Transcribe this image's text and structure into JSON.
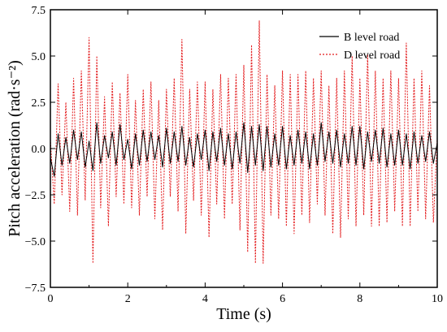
{
  "chart_data": {
    "type": "line",
    "title": "",
    "xlabel": "Time (s)",
    "ylabel": "Pitch acceleration (rad·s⁻²)",
    "xlim": [
      0,
      10
    ],
    "ylim": [
      -7.5,
      7.5
    ],
    "x_ticks": [
      0,
      2,
      4,
      6,
      8,
      10
    ],
    "x_tick_labels": [
      "0",
      "2",
      "4",
      "6",
      "8",
      "10"
    ],
    "y_ticks": [
      -7.5,
      -5.0,
      -2.5,
      0.0,
      2.5,
      5.0,
      7.5
    ],
    "y_tick_labels": [
      "−7.5",
      "−5.0",
      "−2.5",
      "0.0",
      "2.5",
      "5.0",
      "7.5"
    ],
    "grid": false,
    "legend_position": "top-right",
    "series": [
      {
        "name": "B level road",
        "color": "#000000",
        "style": "solid",
        "x": [
          0.0,
          0.1,
          0.2,
          0.3,
          0.4,
          0.5,
          0.6,
          0.7,
          0.8,
          0.9,
          1.0,
          1.1,
          1.2,
          1.3,
          1.4,
          1.5,
          1.6,
          1.7,
          1.8,
          1.9,
          2.0,
          2.1,
          2.2,
          2.3,
          2.4,
          2.5,
          2.6,
          2.7,
          2.8,
          2.9,
          3.0,
          3.1,
          3.2,
          3.3,
          3.4,
          3.5,
          3.6,
          3.7,
          3.8,
          3.9,
          4.0,
          4.1,
          4.2,
          4.3,
          4.4,
          4.5,
          4.6,
          4.7,
          4.8,
          4.9,
          5.0,
          5.1,
          5.2,
          5.3,
          5.4,
          5.5,
          5.6,
          5.7,
          5.8,
          5.9,
          6.0,
          6.1,
          6.2,
          6.3,
          6.4,
          6.5,
          6.6,
          6.7,
          6.8,
          6.9,
          7.0,
          7.1,
          7.2,
          7.3,
          7.4,
          7.5,
          7.6,
          7.7,
          7.8,
          7.9,
          8.0,
          8.1,
          8.2,
          8.3,
          8.4,
          8.5,
          8.6,
          8.7,
          8.8,
          8.9,
          9.0,
          9.1,
          9.2,
          9.3,
          9.4,
          9.5,
          9.6,
          9.7,
          9.8,
          9.9,
          10.0
        ],
        "values": [
          -0.5,
          -1.5,
          0.8,
          -0.9,
          0.6,
          -0.8,
          1.0,
          -0.6,
          0.9,
          -1.0,
          0.4,
          -1.2,
          1.4,
          -0.8,
          0.7,
          -0.5,
          0.9,
          -0.9,
          1.3,
          -0.6,
          0.5,
          -1.1,
          0.8,
          -0.9,
          1.0,
          -0.7,
          0.9,
          -0.6,
          0.7,
          -1.0,
          1.1,
          -0.8,
          0.9,
          -0.7,
          1.2,
          -0.9,
          0.6,
          -1.0,
          0.8,
          -0.6,
          1.0,
          -1.2,
          0.9,
          -0.7,
          1.1,
          -0.9,
          0.8,
          -1.1,
          0.9,
          -0.8,
          1.4,
          -1.3,
          1.2,
          -0.9,
          1.3,
          -1.2,
          1.2,
          -1.0,
          0.8,
          -0.9,
          1.2,
          -1.1,
          0.7,
          -0.9,
          1.0,
          -0.8,
          0.9,
          -1.1,
          0.8,
          -0.9,
          1.4,
          -0.7,
          0.9,
          -0.8,
          1.0,
          -1.0,
          0.8,
          -0.8,
          1.2,
          -0.9,
          1.2,
          -1.1,
          0.9,
          -0.7,
          1.0,
          -0.8,
          1.1,
          -1.0,
          0.8,
          -0.9,
          1.0,
          -0.9,
          0.8,
          -1.1,
          0.9,
          -0.8,
          0.7,
          -0.7,
          0.9,
          -0.8,
          0.3
        ]
      },
      {
        "name": "D level road",
        "color": "#e31a1c",
        "style": "dotted",
        "x": [
          0.0,
          0.1,
          0.2,
          0.3,
          0.4,
          0.5,
          0.6,
          0.7,
          0.8,
          0.9,
          1.0,
          1.1,
          1.2,
          1.3,
          1.4,
          1.5,
          1.6,
          1.7,
          1.8,
          1.9,
          2.0,
          2.1,
          2.2,
          2.3,
          2.4,
          2.5,
          2.6,
          2.7,
          2.8,
          2.9,
          3.0,
          3.1,
          3.2,
          3.3,
          3.4,
          3.5,
          3.6,
          3.7,
          3.8,
          3.9,
          4.0,
          4.1,
          4.2,
          4.3,
          4.4,
          4.5,
          4.6,
          4.7,
          4.8,
          4.9,
          5.0,
          5.1,
          5.2,
          5.3,
          5.4,
          5.5,
          5.6,
          5.7,
          5.8,
          5.9,
          6.0,
          6.1,
          6.2,
          6.3,
          6.4,
          6.5,
          6.6,
          6.7,
          6.8,
          6.9,
          7.0,
          7.1,
          7.2,
          7.3,
          7.4,
          7.5,
          7.6,
          7.7,
          7.8,
          7.9,
          8.0,
          8.1,
          8.2,
          8.3,
          8.4,
          8.5,
          8.6,
          8.7,
          8.8,
          8.9,
          9.0,
          9.1,
          9.2,
          9.3,
          9.4,
          9.5,
          9.6,
          9.7,
          9.8,
          9.9,
          10.0
        ],
        "values": [
          0.5,
          -3.0,
          3.5,
          -2.5,
          2.5,
          -3.4,
          3.8,
          -3.6,
          4.2,
          -2.8,
          6.0,
          -6.2,
          5.0,
          -3.2,
          2.8,
          -4.2,
          3.6,
          -2.6,
          3.0,
          -3.0,
          4.0,
          -3.2,
          2.6,
          -3.6,
          3.2,
          -2.6,
          3.6,
          -3.8,
          2.6,
          -4.4,
          3.2,
          -2.6,
          3.8,
          -3.4,
          5.9,
          -4.6,
          3.2,
          -2.8,
          3.6,
          -3.6,
          3.6,
          -4.8,
          3.2,
          -3.0,
          4.0,
          -3.8,
          3.8,
          -3.0,
          4.0,
          -4.4,
          4.5,
          -5.6,
          5.6,
          -6.2,
          6.9,
          -6.2,
          4.0,
          -3.6,
          3.4,
          -3.8,
          4.2,
          -4.2,
          4.0,
          -4.6,
          4.0,
          -3.6,
          4.2,
          -4.0,
          3.8,
          -3.0,
          4.2,
          -3.6,
          3.4,
          -4.6,
          3.8,
          -4.8,
          4.2,
          -3.8,
          5.0,
          -4.2,
          3.8,
          -3.6,
          5.1,
          -4.2,
          4.2,
          -4.2,
          3.8,
          -4.0,
          4.2,
          -3.4,
          3.8,
          -4.2,
          5.7,
          -4.2,
          3.8,
          -3.4,
          4.2,
          -3.8,
          3.4,
          -4.0,
          0.6
        ]
      }
    ]
  }
}
